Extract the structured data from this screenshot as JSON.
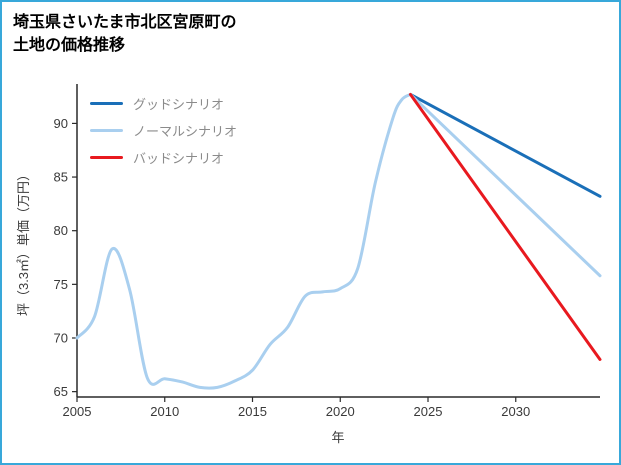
{
  "page": {
    "title_line1": "埼玉県さいたま市北区宮原町の",
    "title_line2": "土地の価格推移",
    "border_color": "#38a8da"
  },
  "chart_data": {
    "type": "line",
    "title": "埼玉県さいたま市北区宮原町の土地の価格推移",
    "xlabel": "年",
    "ylabel": "坪（3.3㎡）単価（万円）",
    "xlim": [
      2005,
      2034.8
    ],
    "ylim": [
      64.5,
      93.3
    ],
    "xticks": [
      2005,
      2010,
      2015,
      2020,
      2025,
      2030
    ],
    "yticks": [
      65,
      70,
      75,
      80,
      85,
      90
    ],
    "grid": false,
    "axis_color": "#2a2a2a",
    "tick_label_color": "#3a3a3a",
    "legend_position": "top-left",
    "legend": [
      {
        "label": "グッドシナリオ",
        "color": "#1a6fb8"
      },
      {
        "label": "ノーマルシナリオ",
        "color": "#a9cfef"
      },
      {
        "label": "バッドシナリオ",
        "color": "#e8191f"
      }
    ],
    "series": [
      {
        "name": "history",
        "color": "#a9cfef",
        "width": 3,
        "x": [
          2005,
          2006,
          2007,
          2008,
          2009,
          2010,
          2011,
          2012,
          2013,
          2014,
          2015,
          2016,
          2017,
          2018,
          2019,
          2020,
          2021,
          2022,
          2023,
          2023.5,
          2024
        ],
        "values": [
          70.0,
          72.0,
          78.3,
          74.5,
          66.3,
          66.2,
          65.9,
          65.4,
          65.4,
          66.0,
          67.0,
          69.4,
          71.0,
          73.9,
          74.3,
          74.6,
          76.5,
          84.5,
          90.5,
          92.2,
          92.7
        ]
      },
      {
        "name": "good-scenario",
        "color": "#1a6fb8",
        "width": 3,
        "x": [
          2024,
          2034.8
        ],
        "values": [
          92.7,
          83.2
        ]
      },
      {
        "name": "normal-scenario",
        "color": "#a9cfef",
        "width": 3,
        "x": [
          2024,
          2034.8
        ],
        "values": [
          92.7,
          75.8
        ]
      },
      {
        "name": "bad-scenario",
        "color": "#e8191f",
        "width": 3,
        "x": [
          2024,
          2034.8
        ],
        "values": [
          92.7,
          68.0
        ]
      }
    ]
  }
}
